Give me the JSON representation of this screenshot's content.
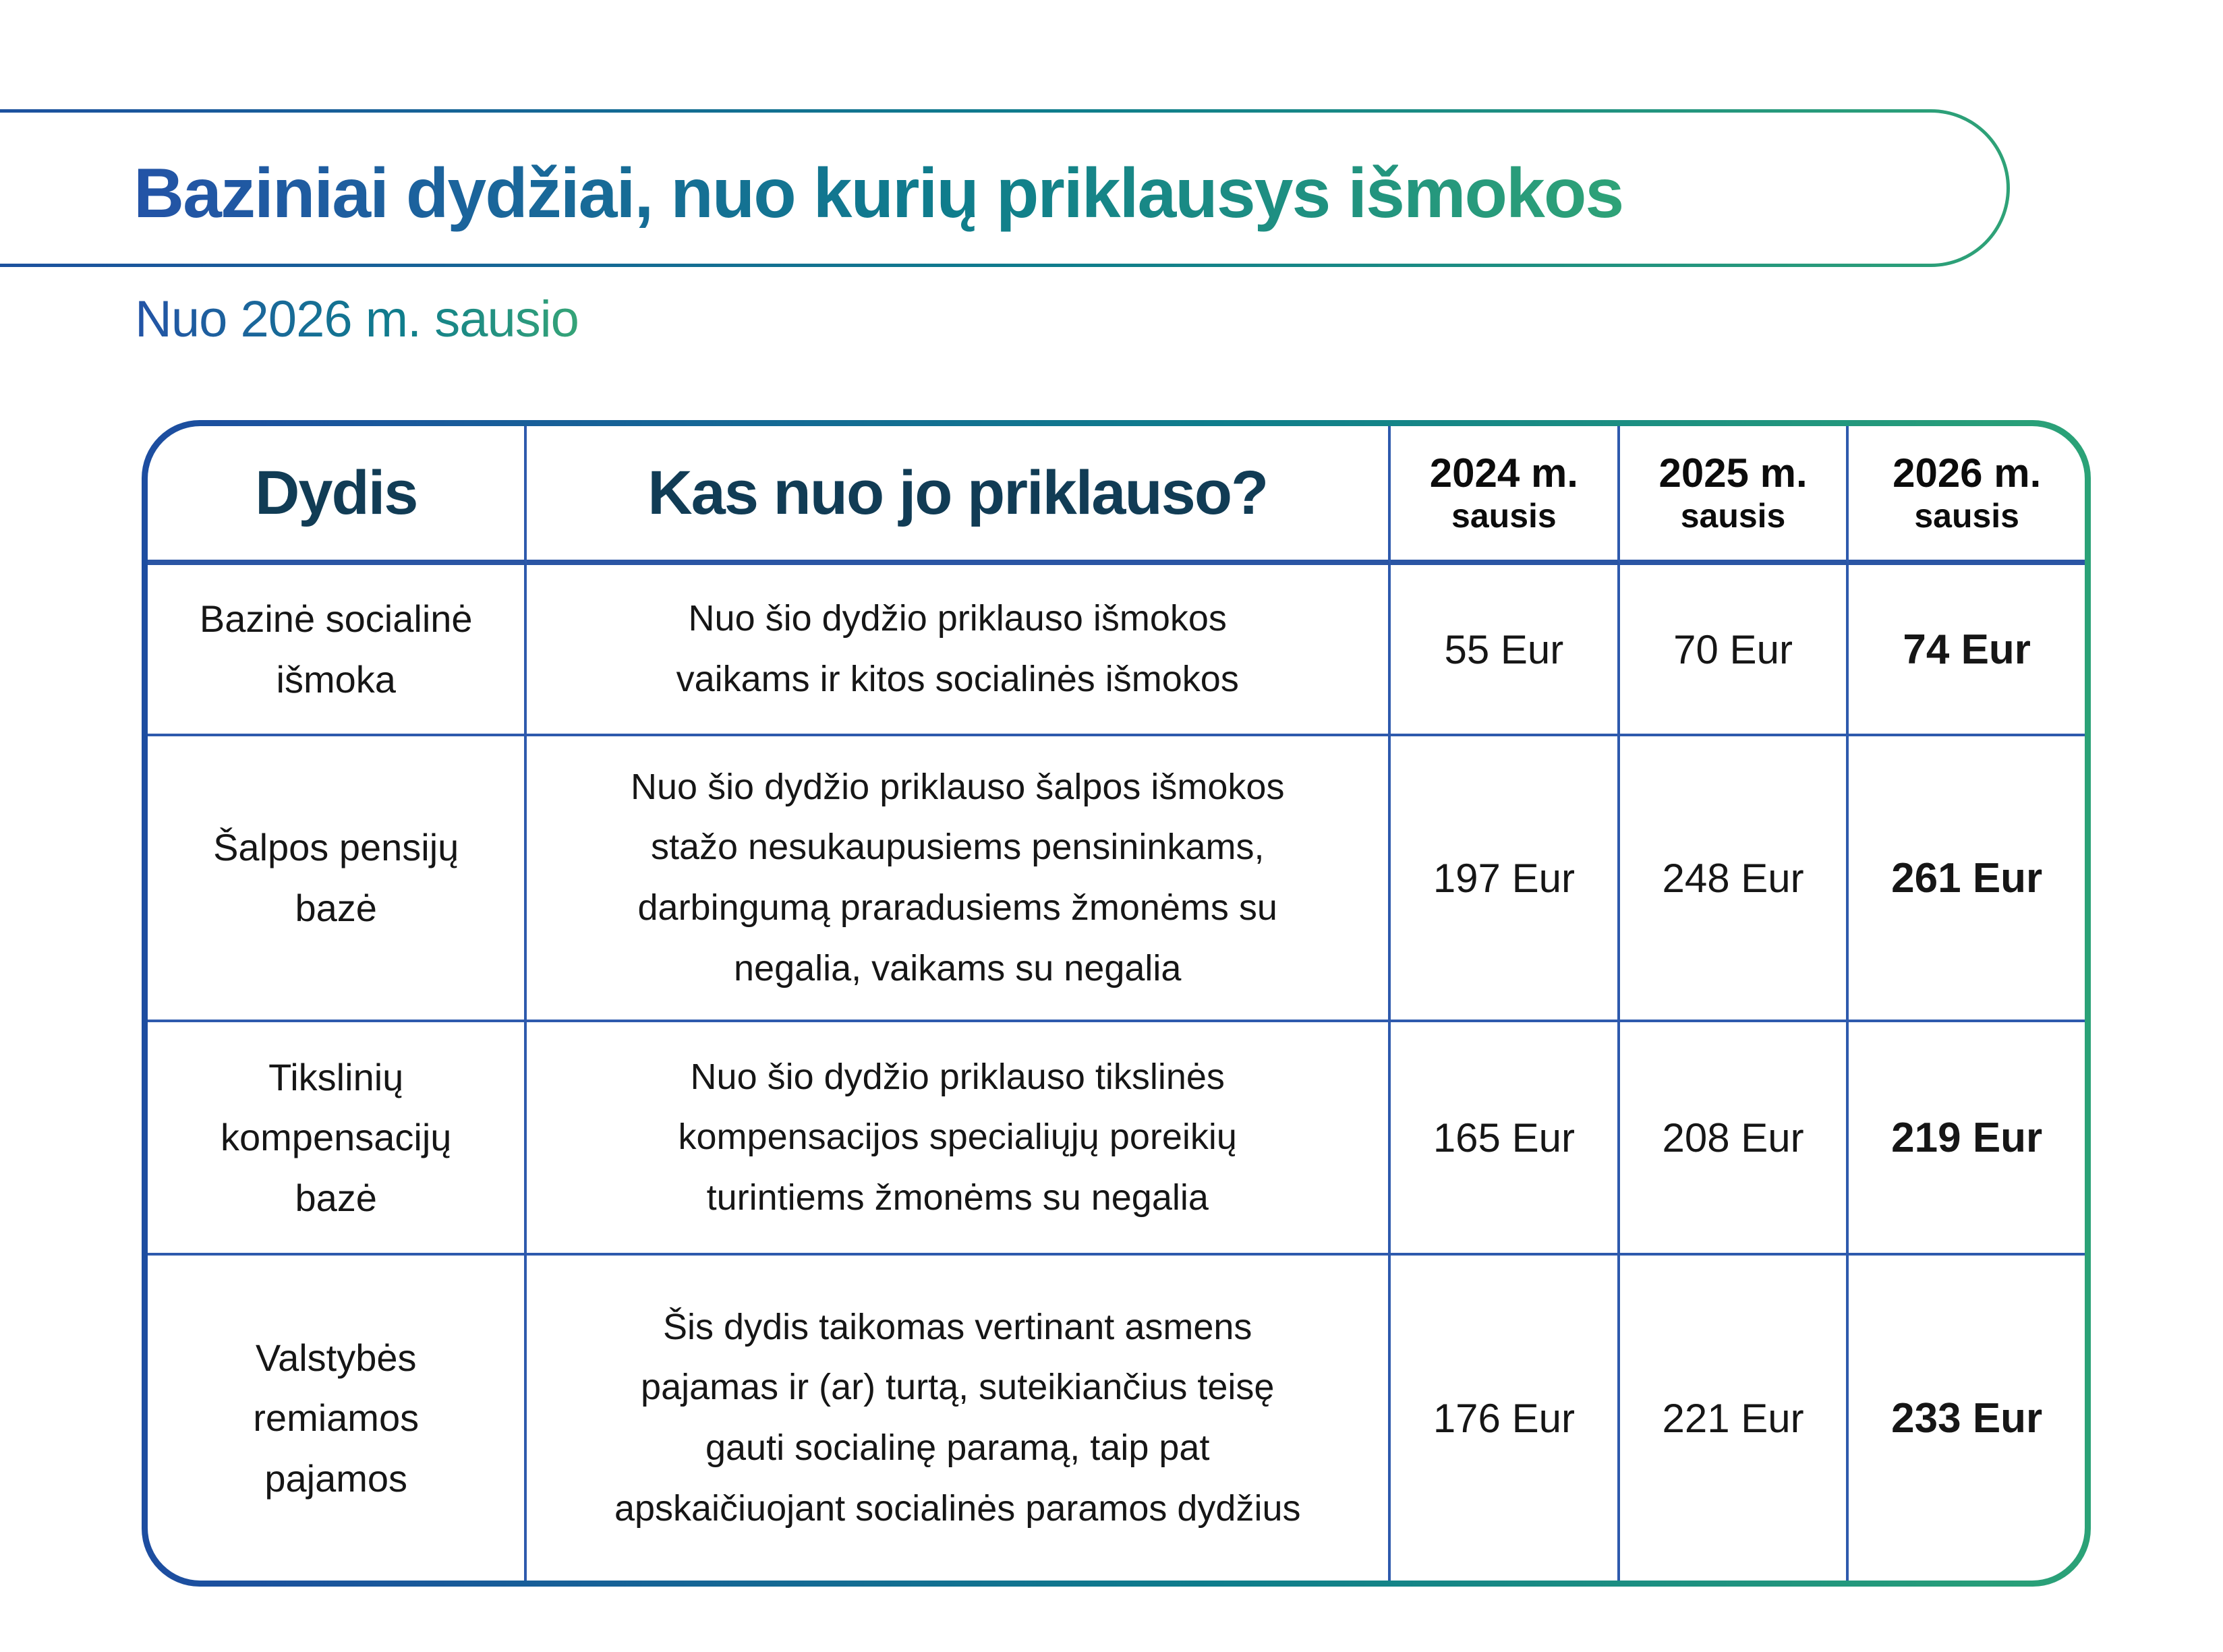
{
  "page": {
    "title": "Baziniai dydžiai, nuo kurių priklausys išmokos",
    "subtitle": "Nuo 2026 m. sausio"
  },
  "colors": {
    "gradient_start": "#2353a6",
    "gradient_mid": "#0f7d8c",
    "gradient_end": "#2ea277",
    "grid_line": "#2e5aad",
    "header_separator": "#2a55a4",
    "header_text": "#113c55",
    "body_text": "#161616"
  },
  "table": {
    "headers": {
      "dydis": "Dydis",
      "kas": "Kas nuo jo priklauso?",
      "years": [
        {
          "year": "2024 m.",
          "sub": "sausis"
        },
        {
          "year": "2025 m.",
          "sub": "sausis"
        },
        {
          "year": "2026 m.",
          "sub": "sausis"
        }
      ]
    },
    "rows": [
      {
        "name": "Bazinė socialinė\nišmoka",
        "desc": "Nuo šio dydžio priklauso išmokos\nvaikams ir kitos socialinės išmokos",
        "v2024": "55 Eur",
        "v2025": "70 Eur",
        "v2026": "74 Eur"
      },
      {
        "name": "Šalpos pensijų\nbazė",
        "desc": "Nuo šio dydžio priklauso šalpos išmokos\nstažo nesukaupusiems pensininkams,\ndarbingumą praradusiems žmonėms su\nnegalia, vaikams su negalia",
        "v2024": "197 Eur",
        "v2025": "248 Eur",
        "v2026": "261 Eur"
      },
      {
        "name": "Tikslinių\nkompensacijų\nbazė",
        "desc": "Nuo šio dydžio priklauso tikslinės\nkompensacijos specialiųjų poreikių\nturintiems žmonėms su negalia",
        "v2024": "165 Eur",
        "v2025": "208 Eur",
        "v2026": "219 Eur"
      },
      {
        "name": "Valstybės\nremiamos\npajamos",
        "desc": "Šis dydis taikomas vertinant asmens\npajamas ir (ar) turtą, suteikiančius teisę\ngauti socialinę paramą, taip pat\napskaičiuojant socialinės paramos dydžius",
        "v2024": "176 Eur",
        "v2025": "221 Eur",
        "v2026": "233 Eur"
      }
    ]
  }
}
